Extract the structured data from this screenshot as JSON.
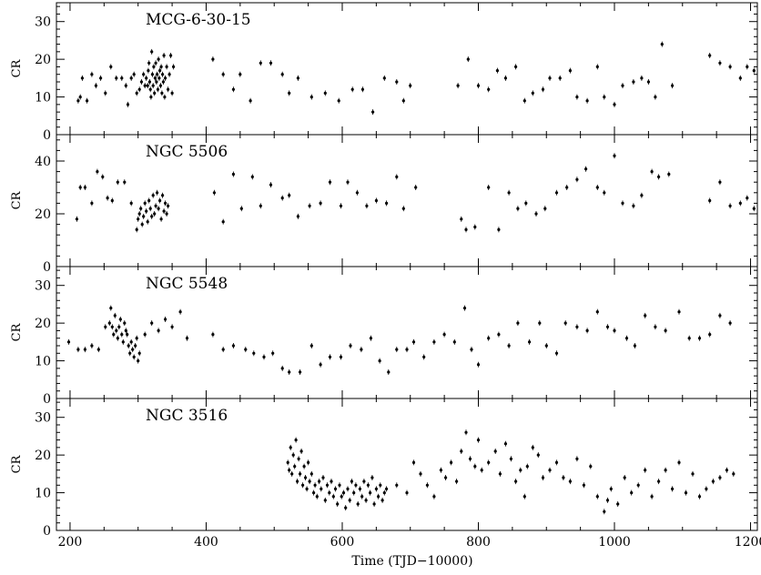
{
  "chart_data": [
    {
      "type": "scatter",
      "title": "MCG-6-30-15",
      "ylabel": "CR",
      "xlim": [
        180,
        1210
      ],
      "ylim": [
        0,
        35
      ],
      "yticks": [
        0,
        10,
        20,
        30
      ],
      "x": [
        212,
        215,
        218,
        225,
        232,
        238,
        245,
        252,
        260,
        268,
        276,
        282,
        285,
        290,
        294,
        298,
        302,
        305,
        308,
        310,
        312,
        314,
        315,
        316,
        317,
        318,
        319,
        320,
        321,
        322,
        323,
        324,
        325,
        326,
        327,
        328,
        329,
        330,
        331,
        332,
        333,
        334,
        335,
        336,
        337,
        338,
        339,
        340,
        342,
        344,
        346,
        348,
        350,
        352,
        410,
        425,
        440,
        450,
        465,
        480,
        495,
        512,
        522,
        535,
        555,
        575,
        595,
        615,
        630,
        645,
        662,
        680,
        690,
        700,
        770,
        785,
        800,
        815,
        828,
        840,
        855,
        868,
        880,
        895,
        905,
        920,
        935,
        945,
        960,
        975,
        985,
        1000,
        1012,
        1028,
        1040,
        1050,
        1060,
        1070,
        1085,
        1140,
        1155,
        1170,
        1185,
        1195,
        1205
      ],
      "y": [
        9,
        10,
        15,
        9,
        16,
        13,
        15,
        11,
        18,
        15,
        15,
        13,
        8,
        15,
        16,
        11,
        12,
        14,
        16,
        13,
        15,
        13,
        17,
        19,
        14,
        12,
        10,
        22,
        16,
        13,
        18,
        11,
        15,
        19,
        14,
        16,
        12,
        20,
        15,
        17,
        13,
        18,
        11,
        16,
        14,
        21,
        10,
        15,
        18,
        12,
        16,
        21,
        11,
        18,
        20,
        16,
        12,
        16,
        9,
        19,
        19,
        16,
        11,
        15,
        10,
        11,
        9,
        12,
        12,
        6,
        15,
        14,
        9,
        13,
        13,
        20,
        13,
        12,
        17,
        15,
        18,
        9,
        11,
        12,
        15,
        15,
        17,
        10,
        9,
        18,
        10,
        8,
        13,
        14,
        15,
        14,
        10,
        24,
        13,
        21,
        19,
        18,
        15,
        18,
        17
      ]
    },
    {
      "type": "scatter",
      "title": "NGC 5506",
      "ylabel": "CR",
      "xlim": [
        180,
        1210
      ],
      "ylim": [
        0,
        50
      ],
      "yticks": [
        0,
        20,
        40
      ],
      "x": [
        210,
        215,
        222,
        232,
        240,
        248,
        255,
        262,
        270,
        280,
        290,
        298,
        300,
        302,
        304,
        306,
        308,
        310,
        312,
        314,
        316,
        318,
        320,
        322,
        324,
        326,
        328,
        330,
        332,
        334,
        336,
        338,
        340,
        342,
        344,
        412,
        425,
        440,
        452,
        468,
        480,
        495,
        512,
        522,
        535,
        552,
        568,
        582,
        598,
        608,
        622,
        636,
        650,
        665,
        680,
        690,
        708,
        775,
        782,
        795,
        815,
        830,
        845,
        858,
        870,
        885,
        898,
        915,
        930,
        945,
        958,
        975,
        985,
        1000,
        1012,
        1028,
        1040,
        1055,
        1065,
        1080,
        1140,
        1155,
        1170,
        1185,
        1195,
        1205
      ],
      "y": [
        18,
        30,
        30,
        24,
        36,
        34,
        26,
        25,
        32,
        32,
        24,
        14,
        18,
        20,
        22,
        16,
        19,
        24,
        21,
        17,
        25,
        22,
        19,
        27,
        20,
        23,
        28,
        22,
        25,
        18,
        27,
        21,
        24,
        20,
        23,
        28,
        17,
        35,
        22,
        34,
        23,
        31,
        26,
        27,
        19,
        23,
        24,
        32,
        23,
        32,
        28,
        23,
        25,
        24,
        34,
        22,
        30,
        18,
        14,
        15,
        30,
        14,
        28,
        22,
        24,
        20,
        22,
        28,
        30,
        33,
        37,
        30,
        28,
        42,
        24,
        23,
        27,
        36,
        34,
        35,
        25,
        32,
        23,
        24,
        26,
        22
      ]
    },
    {
      "type": "scatter",
      "title": "NGC 5548",
      "ylabel": "CR",
      "xlim": [
        180,
        1210
      ],
      "ylim": [
        0,
        35
      ],
      "yticks": [
        0,
        10,
        20,
        30
      ],
      "x": [
        198,
        212,
        222,
        232,
        242,
        252,
        258,
        260,
        262,
        264,
        266,
        268,
        270,
        272,
        274,
        276,
        278,
        280,
        282,
        284,
        286,
        288,
        290,
        292,
        294,
        296,
        298,
        300,
        302,
        310,
        320,
        330,
        340,
        350,
        362,
        372,
        410,
        425,
        440,
        458,
        470,
        485,
        498,
        512,
        522,
        538,
        555,
        568,
        582,
        598,
        612,
        628,
        642,
        655,
        668,
        680,
        695,
        705,
        720,
        735,
        750,
        765,
        780,
        790,
        800,
        815,
        830,
        845,
        858,
        875,
        890,
        900,
        915,
        928,
        945,
        960,
        975,
        990,
        1000,
        1018,
        1030,
        1045,
        1060,
        1075,
        1095,
        1110,
        1125,
        1140,
        1155,
        1170
      ],
      "y": [
        15,
        13,
        13,
        14,
        13,
        19,
        20,
        24,
        19,
        17,
        22,
        18,
        16,
        19,
        21,
        17,
        15,
        20,
        18,
        17,
        14,
        12,
        15,
        13,
        11,
        14,
        16,
        10,
        12,
        17,
        20,
        18,
        21,
        19,
        23,
        16,
        17,
        13,
        14,
        13,
        12,
        11,
        12,
        8,
        7,
        7,
        14,
        9,
        11,
        11,
        14,
        13,
        16,
        10,
        7,
        13,
        13,
        15,
        11,
        15,
        17,
        15,
        24,
        13,
        9,
        16,
        17,
        14,
        20,
        15,
        20,
        14,
        12,
        20,
        19,
        18,
        23,
        19,
        18,
        16,
        14,
        22,
        19,
        18,
        23,
        16,
        16,
        17,
        22,
        20
      ]
    },
    {
      "type": "scatter",
      "title": "NGC 3516",
      "ylabel": "CR",
      "xlabel": "Time (TJD−10000)",
      "xlim": [
        180,
        1210
      ],
      "ylim": [
        0,
        35
      ],
      "yticks": [
        0,
        10,
        20,
        30
      ],
      "xticks": [
        200,
        400,
        600,
        800,
        1000,
        1200
      ],
      "x": [
        520,
        522,
        524,
        526,
        528,
        530,
        532,
        534,
        536,
        538,
        540,
        542,
        544,
        546,
        548,
        550,
        552,
        555,
        558,
        560,
        563,
        566,
        569,
        572,
        575,
        578,
        581,
        584,
        587,
        590,
        593,
        596,
        599,
        602,
        605,
        608,
        611,
        614,
        617,
        620,
        623,
        626,
        629,
        632,
        635,
        638,
        641,
        644,
        647,
        650,
        653,
        656,
        659,
        662,
        665,
        680,
        695,
        705,
        715,
        725,
        735,
        745,
        752,
        760,
        768,
        775,
        782,
        788,
        795,
        800,
        805,
        815,
        825,
        832,
        840,
        848,
        855,
        862,
        868,
        872,
        880,
        888,
        895,
        905,
        915,
        925,
        935,
        945,
        955,
        965,
        975,
        985,
        990,
        995,
        1005,
        1015,
        1025,
        1035,
        1045,
        1055,
        1065,
        1075,
        1085,
        1095,
        1105,
        1115,
        1125,
        1135,
        1145,
        1155,
        1165,
        1175
      ],
      "y": [
        18,
        16,
        22,
        15,
        20,
        17,
        24,
        13,
        19,
        15,
        21,
        12,
        17,
        14,
        11,
        18,
        13,
        15,
        10,
        12,
        9,
        13,
        11,
        14,
        8,
        12,
        10,
        13,
        9,
        11,
        7,
        12,
        9,
        10,
        6,
        11,
        8,
        13,
        10,
        12,
        7,
        11,
        9,
        13,
        8,
        12,
        10,
        14,
        7,
        11,
        9,
        12,
        8,
        10,
        11,
        12,
        10,
        18,
        15,
        12,
        9,
        16,
        14,
        18,
        13,
        21,
        26,
        19,
        17,
        24,
        16,
        18,
        21,
        15,
        23,
        19,
        13,
        16,
        9,
        17,
        22,
        20,
        14,
        16,
        18,
        14,
        13,
        19,
        12,
        17,
        9,
        5,
        8,
        11,
        7,
        14,
        10,
        12,
        16,
        9,
        13,
        16,
        11,
        18,
        10,
        15,
        9,
        11,
        13,
        14,
        16,
        15
      ]
    }
  ]
}
